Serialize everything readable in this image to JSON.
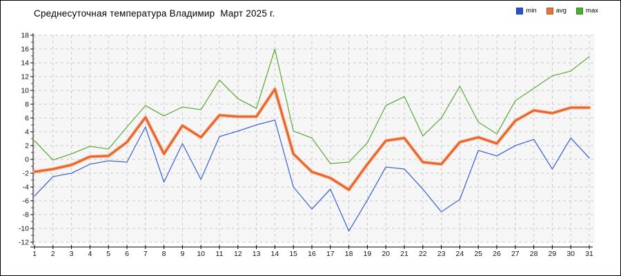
{
  "title": "Среднесуточная температура Владимир  Март 2025 г.",
  "legend": [
    {
      "label": "min",
      "color": "#2b50d2"
    },
    {
      "label": "avg",
      "color": "#e8743c"
    },
    {
      "label": "max",
      "color": "#47b02c"
    }
  ],
  "chart_data": {
    "type": "line",
    "title": "Среднесуточная температура Владимир  Март 2025 г.",
    "xlabel": "",
    "ylabel": "",
    "x": [
      1,
      2,
      3,
      4,
      5,
      6,
      7,
      8,
      9,
      10,
      11,
      12,
      13,
      14,
      15,
      16,
      17,
      18,
      19,
      20,
      21,
      22,
      23,
      24,
      25,
      26,
      27,
      28,
      29,
      30,
      31
    ],
    "xlim": [
      1,
      31
    ],
    "ylim": [
      -12,
      18
    ],
    "ytick_step": 2,
    "grid": true,
    "grid_style": "dashed",
    "legend_position": "top-right",
    "plot_bg": "#f6f6f6",
    "grid_color": "#c9c9c9",
    "axis_color": "#000000",
    "minor_tick_color": "#cc2200",
    "series": [
      {
        "name": "max",
        "color": "#61ad43",
        "width": 1.3,
        "values": [
          2.7,
          -0.1,
          0.8,
          1.9,
          1.5,
          4.7,
          7.8,
          6.3,
          7.6,
          7.2,
          11.5,
          8.8,
          7.4,
          16.0,
          4.1,
          3.1,
          -0.6,
          -0.4,
          2.4,
          7.8,
          9.1,
          3.4,
          6.0,
          10.6,
          5.4,
          3.7,
          8.5,
          10.3,
          12.1,
          12.8,
          14.9
        ]
      },
      {
        "name": "min",
        "color": "#4368d6",
        "width": 1.3,
        "values": [
          -5.3,
          -2.5,
          -2.0,
          -0.7,
          -0.2,
          -0.4,
          4.7,
          -3.3,
          2.3,
          -2.9,
          3.3,
          4.1,
          5.0,
          5.7,
          -4.0,
          -7.2,
          -4.3,
          -10.4,
          -5.9,
          -1.1,
          -1.4,
          -4.3,
          -7.6,
          -5.8,
          1.3,
          0.5,
          2.0,
          2.9,
          -1.4,
          3.1,
          0.2
        ]
      },
      {
        "name": "avg",
        "color": "#e2622b",
        "halo_color": "#f6b08c",
        "width": 2.6,
        "halo_width": 5,
        "values": [
          -1.8,
          -1.4,
          -0.8,
          0.4,
          0.5,
          2.5,
          6.1,
          0.8,
          4.9,
          3.2,
          6.4,
          6.2,
          6.2,
          10.2,
          0.8,
          -1.8,
          -2.7,
          -4.4,
          -0.7,
          2.7,
          3.1,
          -0.4,
          -0.7,
          2.5,
          3.2,
          2.3,
          5.6,
          7.1,
          6.7,
          7.5,
          7.5
        ]
      }
    ]
  }
}
